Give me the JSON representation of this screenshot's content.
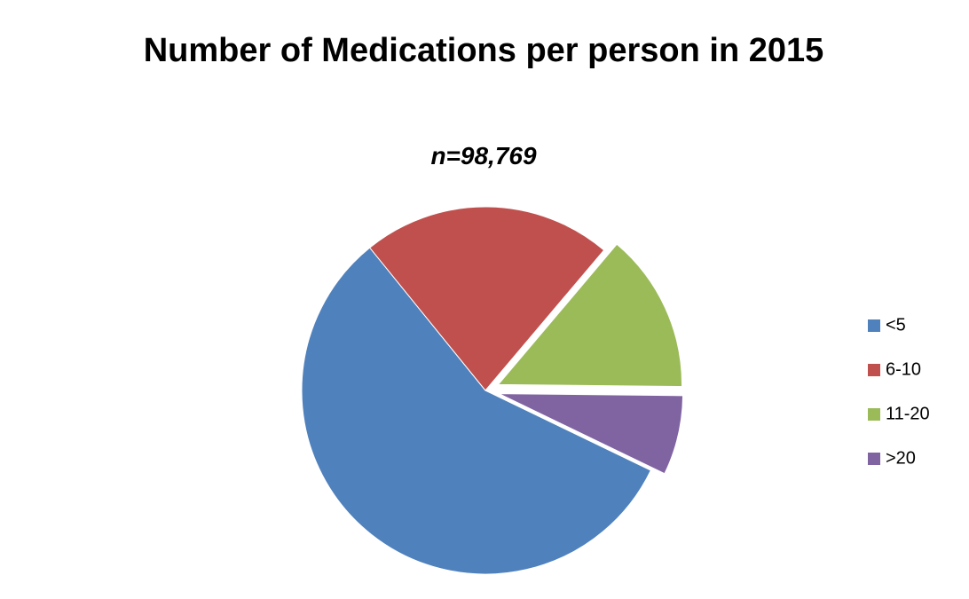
{
  "chart_data": {
    "type": "pie",
    "title": "Number of Medications per person in 2015",
    "subtitle": "n=98,769",
    "categories": [
      "<5",
      "6-10",
      "11-20",
      ">20"
    ],
    "values": [
      57,
      22,
      14,
      7
    ],
    "colors": [
      "#4f81bd",
      "#c0504d",
      "#9bbb59",
      "#8064a2"
    ],
    "exploded": [
      false,
      false,
      true,
      true
    ],
    "legend": "right"
  }
}
